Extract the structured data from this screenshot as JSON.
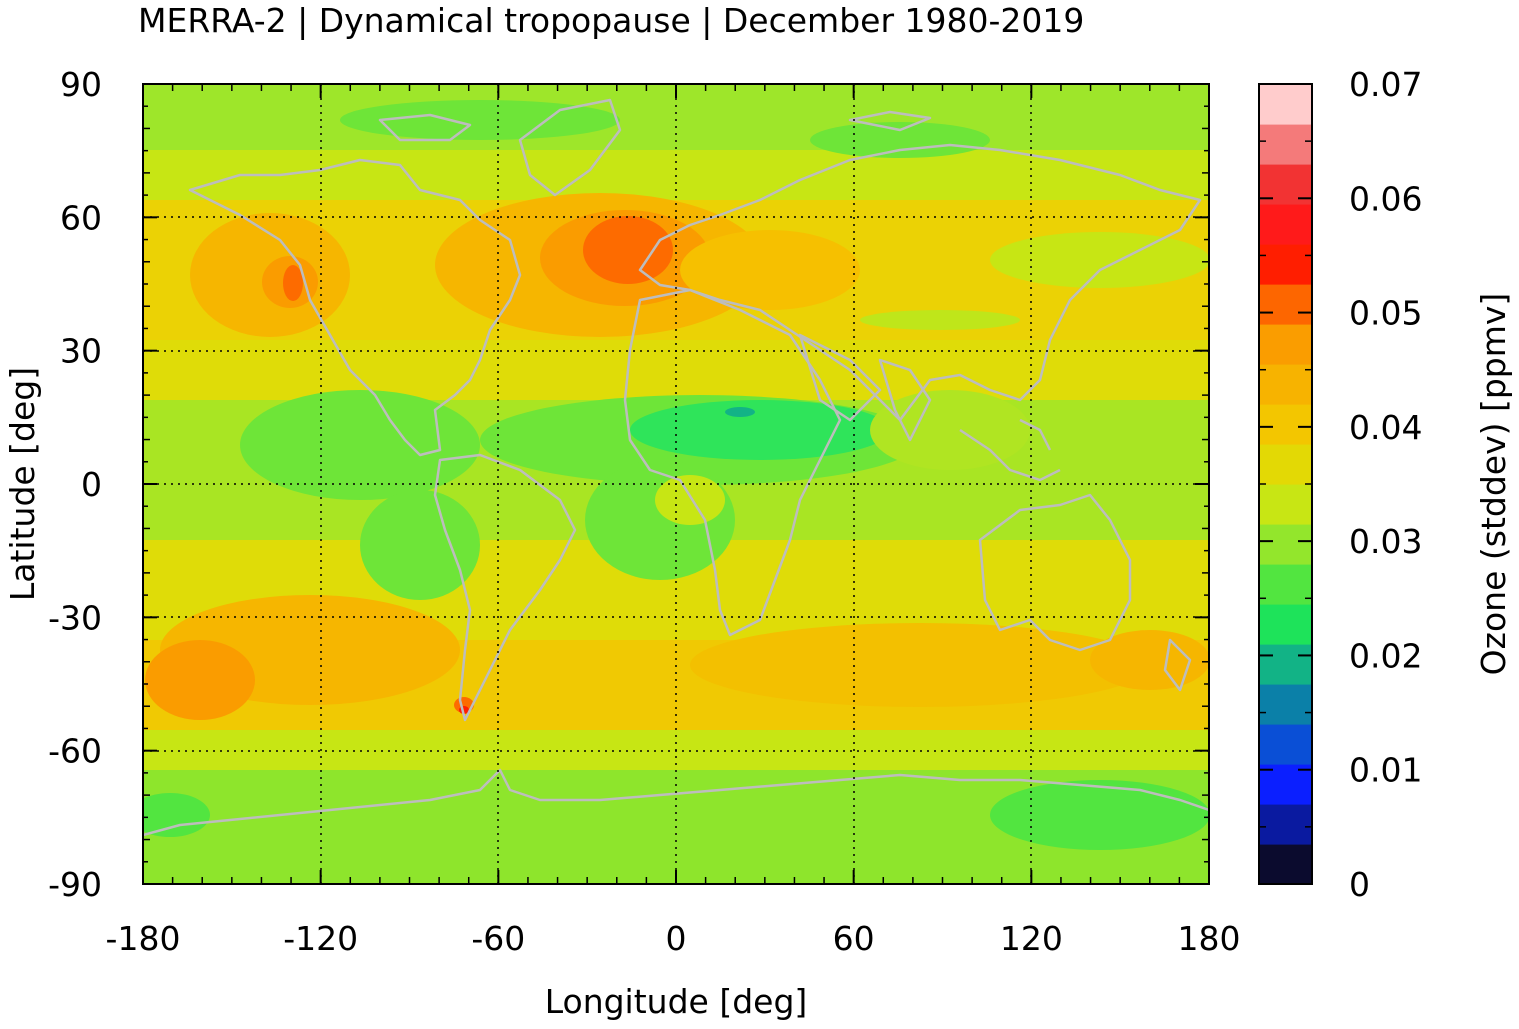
{
  "title": "MERRA-2 | Dynamical tropopause | December 1980-2019",
  "map": {
    "x_axis": {
      "label": "Longitude [deg]",
      "ticks": [
        "-180",
        "-120",
        "-60",
        "0",
        "60",
        "120",
        "180"
      ],
      "tick_values": [
        -180,
        -120,
        -60,
        0,
        60,
        120,
        180
      ],
      "range": [
        -180,
        180
      ]
    },
    "y_axis": {
      "label": "Latitude [deg]",
      "ticks": [
        "90",
        "60",
        "30",
        "0",
        "-30",
        "-60",
        "-90"
      ],
      "tick_values": [
        90,
        60,
        30,
        0,
        -30,
        -60,
        -90
      ],
      "range": [
        -90,
        90
      ]
    },
    "grid": "dotted",
    "coastlines_color": "#bdbdbd"
  },
  "colorbar": {
    "label": "Ozone (stddev) [ppmv]",
    "ticks": [
      "0",
      "0.01",
      "0.02",
      "0.03",
      "0.04",
      "0.05",
      "0.06",
      "0.07"
    ],
    "tick_values": [
      0,
      0.01,
      0.02,
      0.03,
      0.04,
      0.05,
      0.06,
      0.07
    ],
    "range": [
      0,
      0.07
    ],
    "colors": [
      "#0b0b2e",
      "#0a1aa0",
      "#0b1fff",
      "#0a4fd6",
      "#0b80a8",
      "#12b386",
      "#1ee35a",
      "#52e540",
      "#93e62c",
      "#c8e614",
      "#e3d905",
      "#f3c600",
      "#f7b300",
      "#fa9d00",
      "#fd6600",
      "#ff1e00",
      "#ff1a1a",
      "#f23333",
      "#f47a7a",
      "#ffcccc"
    ]
  }
}
